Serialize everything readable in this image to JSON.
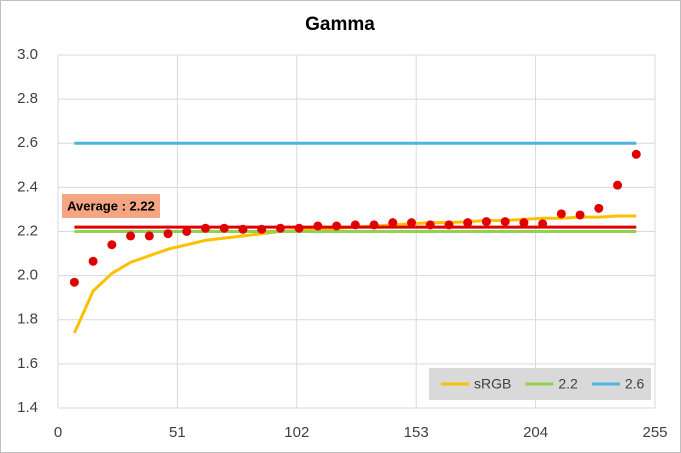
{
  "chart_data": {
    "type": "line",
    "title": "Gamma",
    "x": [
      7,
      15,
      23,
      31,
      39,
      47,
      55,
      63,
      71,
      79,
      87,
      95,
      103,
      111,
      119,
      127,
      135,
      143,
      151,
      159,
      167,
      175,
      183,
      191,
      199,
      207,
      215,
      223,
      231,
      239,
      247
    ],
    "series": [
      {
        "name": "sRGB",
        "color": "#ffc000",
        "values": [
          1.74,
          1.93,
          2.01,
          2.06,
          2.09,
          2.12,
          2.14,
          2.16,
          2.17,
          2.18,
          2.19,
          2.2,
          2.205,
          2.21,
          2.215,
          2.22,
          2.225,
          2.23,
          2.235,
          2.24,
          2.24,
          2.245,
          2.25,
          2.25,
          2.255,
          2.26,
          2.26,
          2.265,
          2.265,
          2.27,
          2.27
        ]
      },
      {
        "name": "2.2",
        "color": "#92d050",
        "x": [
          7,
          247
        ],
        "values": [
          2.2,
          2.2
        ]
      },
      {
        "name": "2.6",
        "color": "#4eb3e0",
        "x": [
          7,
          247
        ],
        "values": [
          2.6,
          2.6
        ]
      },
      {
        "type": "scatter",
        "color": "#e00000",
        "values": [
          1.97,
          2.065,
          2.14,
          2.18,
          2.18,
          2.19,
          2.2,
          2.215,
          2.215,
          2.21,
          2.21,
          2.215,
          2.215,
          2.225,
          2.225,
          2.23,
          2.23,
          2.24,
          2.24,
          2.23,
          2.23,
          2.24,
          2.245,
          2.245,
          2.24,
          2.235,
          2.28,
          2.275,
          2.305,
          2.41,
          2.55
        ]
      }
    ],
    "reference_line": {
      "value": 2.22,
      "label": "Average : 2.22",
      "color": "#e00000",
      "x": [
        7,
        247
      ]
    },
    "xlim": [
      0,
      255
    ],
    "xticks": [
      0,
      51,
      102,
      153,
      204,
      255
    ],
    "ylim": [
      1.4,
      3.0
    ],
    "yticks": [
      1.4,
      1.6,
      1.8,
      {
        "value": 2,
        "label": "2.0"
      },
      2.2,
      2.4,
      2.6,
      2.8,
      {
        "value": 3,
        "label": "3.0"
      }
    ],
    "grid": true,
    "legend": "lower right"
  }
}
